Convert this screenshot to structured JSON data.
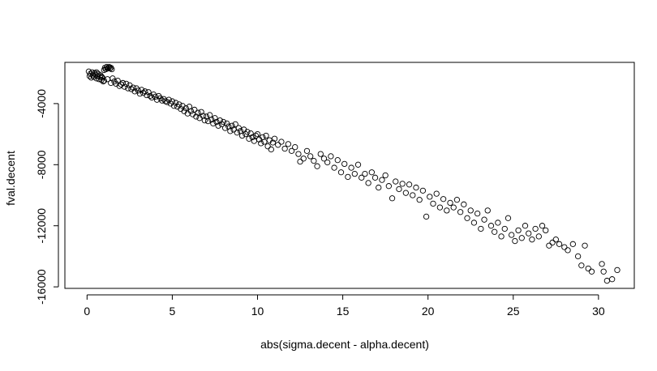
{
  "chart_data": {
    "type": "scatter",
    "title": "",
    "xlabel": "abs(sigma.decent - alpha.decent)",
    "ylabel": "fval.decent",
    "xlim": [
      -1.3,
      32.1
    ],
    "ylim": [
      -16100,
      -1300
    ],
    "x_ticks": [
      0,
      5,
      10,
      15,
      20,
      25,
      30
    ],
    "y_ticks": [
      -16000,
      -12000,
      -8000,
      -4000
    ],
    "x_tick_labels": [
      "0",
      "5",
      "10",
      "15",
      "20",
      "25",
      "30"
    ],
    "y_tick_labels": [
      "-16000",
      "-12000",
      "-8000",
      "-4000"
    ],
    "marker": "open-circle",
    "grid": false,
    "series": [
      {
        "points": [
          [
            0.1,
            -1900
          ],
          [
            0.15,
            -2200
          ],
          [
            0.2,
            -2050
          ],
          [
            0.25,
            -2300
          ],
          [
            0.3,
            -1950
          ],
          [
            0.35,
            -2150
          ],
          [
            0.4,
            -2250
          ],
          [
            0.45,
            -2000
          ],
          [
            0.5,
            -2100
          ],
          [
            0.55,
            -2350
          ],
          [
            0.6,
            -2200
          ],
          [
            0.65,
            -2050
          ],
          [
            0.7,
            -2400
          ],
          [
            0.75,
            -2250
          ],
          [
            0.8,
            -2150
          ],
          [
            0.85,
            -2450
          ],
          [
            0.9,
            -2300
          ],
          [
            0.95,
            -2550
          ],
          [
            1.0,
            -1800
          ],
          [
            1.05,
            -1650
          ],
          [
            1.1,
            -1750
          ],
          [
            1.15,
            -1600
          ],
          [
            1.2,
            -1700
          ],
          [
            1.25,
            -1650
          ],
          [
            1.3,
            -1600
          ],
          [
            1.35,
            -1700
          ],
          [
            1.4,
            -1650
          ],
          [
            1.45,
            -1750
          ],
          [
            0.55,
            -1950
          ],
          [
            0.85,
            -2250
          ],
          [
            1.0,
            -2500
          ],
          [
            1.2,
            -2400
          ],
          [
            1.4,
            -2650
          ],
          [
            1.6,
            -2550
          ],
          [
            1.8,
            -2500
          ],
          [
            2.0,
            -2750
          ],
          [
            1.5,
            -2350
          ],
          [
            1.7,
            -2700
          ],
          [
            1.9,
            -2850
          ],
          [
            2.1,
            -2650
          ],
          [
            2.2,
            -2900
          ],
          [
            2.3,
            -2700
          ],
          [
            2.4,
            -3000
          ],
          [
            2.5,
            -2800
          ],
          [
            2.6,
            -3050
          ],
          [
            2.7,
            -2950
          ],
          [
            2.8,
            -3200
          ],
          [
            2.9,
            -3000
          ],
          [
            3.0,
            -3150
          ],
          [
            3.1,
            -3350
          ],
          [
            3.2,
            -3100
          ],
          [
            3.3,
            -3300
          ],
          [
            3.4,
            -3200
          ],
          [
            3.5,
            -3450
          ],
          [
            3.6,
            -3250
          ],
          [
            3.7,
            -3500
          ],
          [
            3.8,
            -3600
          ],
          [
            3.9,
            -3400
          ],
          [
            4.0,
            -3550
          ],
          [
            4.1,
            -3750
          ],
          [
            4.2,
            -3500
          ],
          [
            4.3,
            -3650
          ],
          [
            4.4,
            -3800
          ],
          [
            4.5,
            -3700
          ],
          [
            4.6,
            -3850
          ],
          [
            4.7,
            -3900
          ],
          [
            4.8,
            -3750
          ],
          [
            4.9,
            -4000
          ],
          [
            5.0,
            -3850
          ],
          [
            5.1,
            -4150
          ],
          [
            5.2,
            -3950
          ],
          [
            5.3,
            -4200
          ],
          [
            5.4,
            -4050
          ],
          [
            5.5,
            -4350
          ],
          [
            5.6,
            -4150
          ],
          [
            5.7,
            -4500
          ],
          [
            5.8,
            -4300
          ],
          [
            5.9,
            -4650
          ],
          [
            6.0,
            -4200
          ],
          [
            6.1,
            -4500
          ],
          [
            6.2,
            -4700
          ],
          [
            6.3,
            -4400
          ],
          [
            6.4,
            -4850
          ],
          [
            6.5,
            -4600
          ],
          [
            6.6,
            -4950
          ],
          [
            6.7,
            -4550
          ],
          [
            6.8,
            -4800
          ],
          [
            6.9,
            -5100
          ],
          [
            7.0,
            -4850
          ],
          [
            7.1,
            -5150
          ],
          [
            7.2,
            -4750
          ],
          [
            7.3,
            -5050
          ],
          [
            7.4,
            -5300
          ],
          [
            7.5,
            -4950
          ],
          [
            7.6,
            -5200
          ],
          [
            7.7,
            -5450
          ],
          [
            7.8,
            -5100
          ],
          [
            7.9,
            -5350
          ],
          [
            8.0,
            -5200
          ],
          [
            8.1,
            -5600
          ],
          [
            8.2,
            -5300
          ],
          [
            8.3,
            -5500
          ],
          [
            8.4,
            -5800
          ],
          [
            8.5,
            -5450
          ],
          [
            8.6,
            -5700
          ],
          [
            8.7,
            -5350
          ],
          [
            8.8,
            -5900
          ],
          [
            8.9,
            -5600
          ],
          [
            9.0,
            -5800
          ],
          [
            9.1,
            -6100
          ],
          [
            9.2,
            -5700
          ],
          [
            9.3,
            -6000
          ],
          [
            9.4,
            -5850
          ],
          [
            9.5,
            -6300
          ],
          [
            9.6,
            -5950
          ],
          [
            9.7,
            -6200
          ],
          [
            9.8,
            -6450
          ],
          [
            9.9,
            -6100
          ],
          [
            10.0,
            -6000
          ],
          [
            10.1,
            -6350
          ],
          [
            10.2,
            -6600
          ],
          [
            10.3,
            -6200
          ],
          [
            10.4,
            -6500
          ],
          [
            10.5,
            -6100
          ],
          [
            10.6,
            -6800
          ],
          [
            10.7,
            -6400
          ],
          [
            10.8,
            -7000
          ],
          [
            10.9,
            -6550
          ],
          [
            11.0,
            -6300
          ],
          [
            11.2,
            -6700
          ],
          [
            11.4,
            -6500
          ],
          [
            11.6,
            -6950
          ],
          [
            11.8,
            -6650
          ],
          [
            12.0,
            -7100
          ],
          [
            12.2,
            -6850
          ],
          [
            12.4,
            -7300
          ],
          [
            12.5,
            -7800
          ],
          [
            12.7,
            -7600
          ],
          [
            12.9,
            -7100
          ],
          [
            13.1,
            -7450
          ],
          [
            13.3,
            -7750
          ],
          [
            13.5,
            -8100
          ],
          [
            13.7,
            -7300
          ],
          [
            13.9,
            -7600
          ],
          [
            14.1,
            -7850
          ],
          [
            14.3,
            -7450
          ],
          [
            14.5,
            -8200
          ],
          [
            14.7,
            -7700
          ],
          [
            14.9,
            -8500
          ],
          [
            15.1,
            -7950
          ],
          [
            15.3,
            -8800
          ],
          [
            15.5,
            -8200
          ],
          [
            15.7,
            -8600
          ],
          [
            15.9,
            -8000
          ],
          [
            16.1,
            -8850
          ],
          [
            16.3,
            -8600
          ],
          [
            16.5,
            -9200
          ],
          [
            16.7,
            -8500
          ],
          [
            16.9,
            -8850
          ],
          [
            17.1,
            -9500
          ],
          [
            17.3,
            -9000
          ],
          [
            17.5,
            -8700
          ],
          [
            17.7,
            -9400
          ],
          [
            17.9,
            -10200
          ],
          [
            18.1,
            -9100
          ],
          [
            18.3,
            -9600
          ],
          [
            18.5,
            -9250
          ],
          [
            18.7,
            -9850
          ],
          [
            18.9,
            -9300
          ],
          [
            19.1,
            -10000
          ],
          [
            19.3,
            -9500
          ],
          [
            19.5,
            -10300
          ],
          [
            19.7,
            -9700
          ],
          [
            19.9,
            -11400
          ],
          [
            20.1,
            -10100
          ],
          [
            20.3,
            -10550
          ],
          [
            20.5,
            -9900
          ],
          [
            20.7,
            -10800
          ],
          [
            20.9,
            -10250
          ],
          [
            21.1,
            -11000
          ],
          [
            21.3,
            -10500
          ],
          [
            21.5,
            -10800
          ],
          [
            21.7,
            -10300
          ],
          [
            21.9,
            -11100
          ],
          [
            22.1,
            -10600
          ],
          [
            22.3,
            -11500
          ],
          [
            22.5,
            -11000
          ],
          [
            22.7,
            -11800
          ],
          [
            22.9,
            -11200
          ],
          [
            23.1,
            -12200
          ],
          [
            23.3,
            -11600
          ],
          [
            23.5,
            -11000
          ],
          [
            23.7,
            -12000
          ],
          [
            23.9,
            -12400
          ],
          [
            24.1,
            -11800
          ],
          [
            24.3,
            -12700
          ],
          [
            24.5,
            -12200
          ],
          [
            24.7,
            -11500
          ],
          [
            24.9,
            -12600
          ],
          [
            25.1,
            -13000
          ],
          [
            25.3,
            -12300
          ],
          [
            25.5,
            -12800
          ],
          [
            25.7,
            -12000
          ],
          [
            25.9,
            -12500
          ],
          [
            26.1,
            -12900
          ],
          [
            26.3,
            -12200
          ],
          [
            26.5,
            -12700
          ],
          [
            26.7,
            -12000
          ],
          [
            26.9,
            -12300
          ],
          [
            27.1,
            -13300
          ],
          [
            27.3,
            -13100
          ],
          [
            27.5,
            -12900
          ],
          [
            27.7,
            -13200
          ],
          [
            28.0,
            -13400
          ],
          [
            28.2,
            -13600
          ],
          [
            28.5,
            -13200
          ],
          [
            28.8,
            -14000
          ],
          [
            29.0,
            -14600
          ],
          [
            29.2,
            -13300
          ],
          [
            29.4,
            -14800
          ],
          [
            29.6,
            -15000
          ],
          [
            30.2,
            -14500
          ],
          [
            30.3,
            -15000
          ],
          [
            30.5,
            -15600
          ],
          [
            30.8,
            -15500
          ],
          [
            31.1,
            -14900
          ]
        ]
      }
    ]
  }
}
